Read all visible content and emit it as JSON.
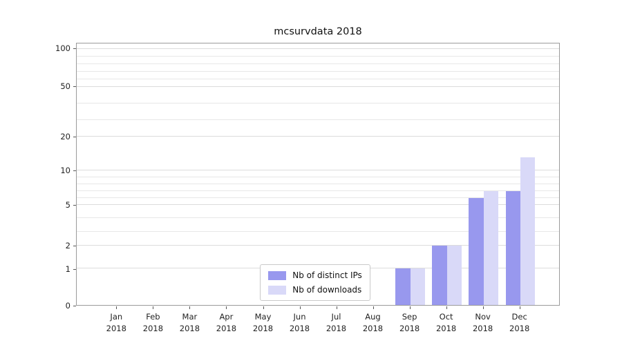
{
  "chart_data": {
    "type": "bar",
    "title": "mcsurvdata 2018",
    "categories": [
      "Jan",
      "Feb",
      "Mar",
      "Apr",
      "May",
      "Jun",
      "Jul",
      "Aug",
      "Sep",
      "Oct",
      "Nov",
      "Dec"
    ],
    "x_year": "2018",
    "series": [
      {
        "name": "Nb of distinct IPs",
        "color": "#9898ee",
        "values": [
          0,
          0,
          0,
          0,
          0,
          0,
          0,
          0,
          1,
          2,
          6,
          7
        ]
      },
      {
        "name": "Nb of downloads",
        "color": "#d9d9f8",
        "values": [
          0,
          0,
          0,
          0,
          0,
          0,
          0,
          0,
          1,
          2,
          7,
          14
        ]
      }
    ],
    "y_axis": {
      "ticks": [
        0,
        1,
        2,
        5,
        10,
        20,
        50,
        100
      ],
      "scale": "log-like",
      "ylim": [
        0,
        100
      ]
    },
    "grid": "horizontal",
    "legend_position": "lower center"
  }
}
